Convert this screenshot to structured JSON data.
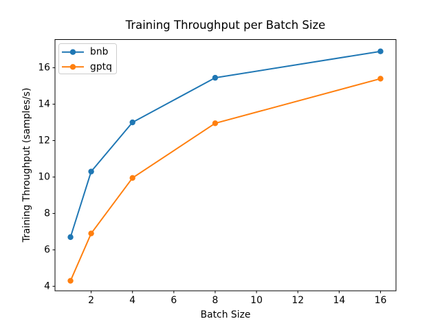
{
  "chart_data": {
    "type": "line",
    "title": "Training Throughput per Batch Size",
    "xlabel": "Batch Size",
    "ylabel": "Training Throughput (samples/s)",
    "x": [
      1,
      2,
      4,
      8,
      16
    ],
    "series": [
      {
        "name": "bnb",
        "color": "#1f77b4",
        "marker": "circle",
        "values": [
          6.7,
          10.3,
          13.0,
          15.45,
          16.9
        ]
      },
      {
        "name": "gptq",
        "color": "#ff7f0e",
        "marker": "circle",
        "values": [
          4.3,
          6.9,
          9.95,
          12.95,
          15.4
        ]
      }
    ],
    "xlim": [
      0.25,
      16.75
    ],
    "ylim": [
      3.75,
      17.55
    ],
    "xticks": [
      2,
      4,
      6,
      8,
      10,
      12,
      14,
      16
    ],
    "yticks": [
      4,
      6,
      8,
      10,
      12,
      14,
      16
    ],
    "grid": false,
    "legend": {
      "position": "upper left",
      "entries": [
        "bnb",
        "gptq"
      ],
      "frame_color": "#cccccc",
      "frame_fill": "#ffffff"
    },
    "colors": {
      "spine": "#000000",
      "background": "#ffffff",
      "text": "#000000"
    }
  }
}
